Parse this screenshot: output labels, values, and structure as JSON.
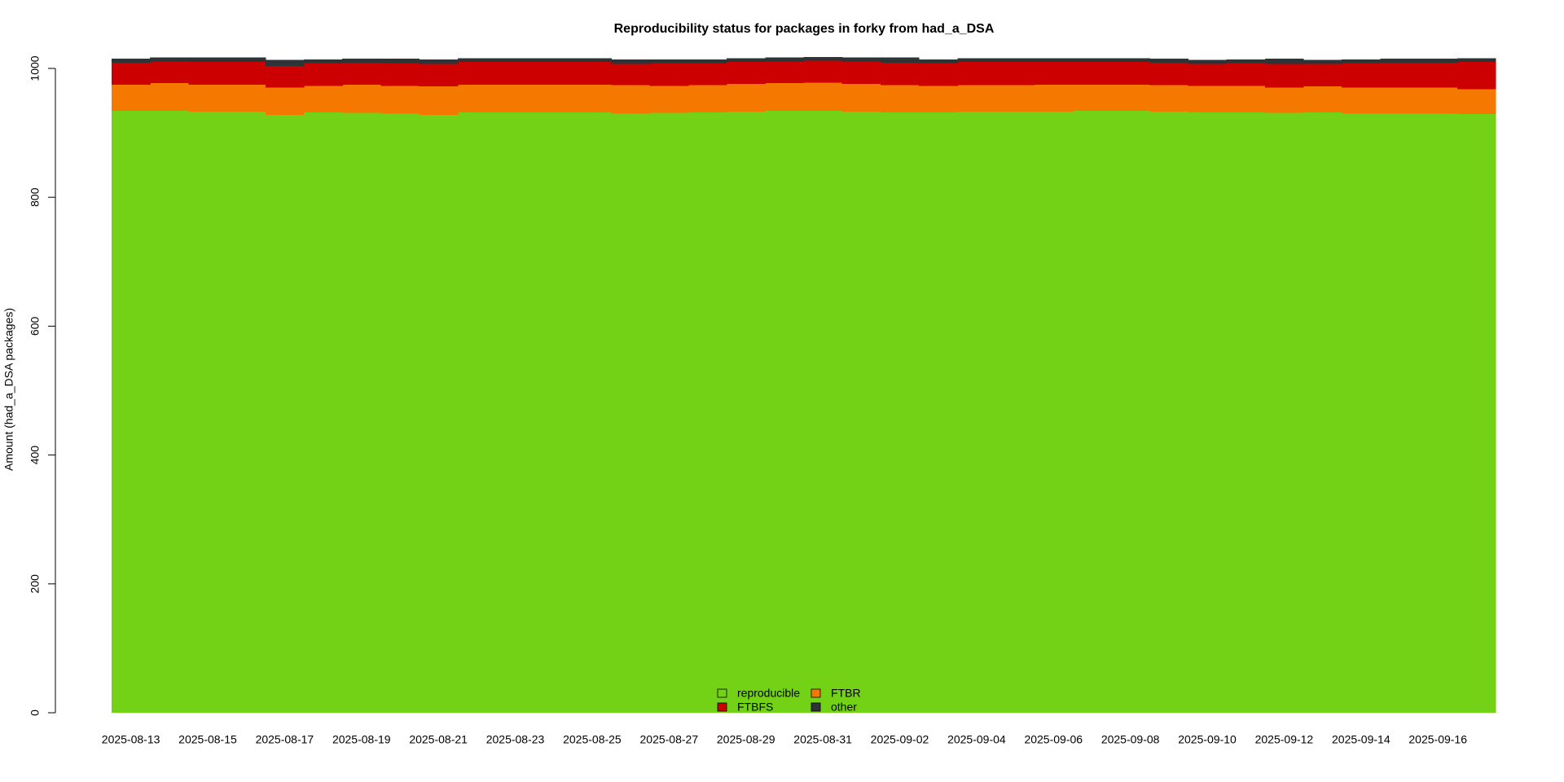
{
  "chart_data": {
    "type": "area",
    "stacked": true,
    "step": true,
    "title": "Reproducibility status for packages in forky from had_a_DSA",
    "y_label": "Amount (had_a_DSA packages)",
    "categories": [
      "2025-08-13",
      null,
      "2025-08-15",
      null,
      "2025-08-17",
      null,
      "2025-08-19",
      null,
      "2025-08-21",
      null,
      "2025-08-23",
      null,
      "2025-08-25",
      null,
      "2025-08-27",
      null,
      "2025-08-29",
      null,
      "2025-08-31",
      null,
      "2025-09-02",
      null,
      "2025-09-04",
      null,
      "2025-09-06",
      null,
      "2025-09-08",
      null,
      "2025-09-10",
      null,
      "2025-09-12",
      null,
      "2025-09-14",
      null,
      "2025-09-16",
      null
    ],
    "series": [
      {
        "name": "reproducible",
        "color": "#73d216",
        "values": [
          934,
          934,
          933,
          933,
          928,
          932,
          931,
          930,
          928,
          932,
          932,
          932,
          932,
          930,
          931,
          932,
          933,
          934,
          934,
          933,
          932,
          932,
          933,
          933,
          933,
          934,
          934,
          933,
          932,
          932,
          931,
          932,
          930,
          930,
          930,
          929
        ]
      },
      {
        "name": "FTBR",
        "color": "#f57900",
        "values": [
          41,
          43,
          42,
          42,
          42,
          41,
          44,
          43,
          44,
          43,
          43,
          43,
          43,
          44,
          42,
          42,
          43,
          43,
          44,
          43,
          42,
          41,
          41,
          41,
          42,
          41,
          41,
          41,
          41,
          41,
          39,
          40,
          40,
          40,
          40,
          39
        ]
      },
      {
        "name": "FTBFS",
        "color": "#cc0000",
        "values": [
          34,
          34,
          35,
          35,
          34,
          35,
          34,
          35,
          35,
          35,
          35,
          35,
          35,
          33,
          35,
          34,
          34,
          34,
          34,
          35,
          35,
          35,
          36,
          36,
          35,
          35,
          35,
          35,
          34,
          35,
          37,
          35,
          38,
          39,
          39,
          42
        ]
      },
      {
        "name": "other",
        "color": "#2e3436",
        "values": [
          6,
          6,
          7,
          7,
          9,
          6,
          6,
          7,
          7,
          6,
          6,
          6,
          6,
          7,
          6,
          6,
          6,
          6,
          6,
          6,
          8,
          6,
          6,
          6,
          6,
          6,
          6,
          6,
          6,
          6,
          8,
          6,
          6,
          6,
          6,
          6
        ]
      }
    ],
    "ylim": [
      0,
      1000
    ],
    "yticks": [
      0,
      200,
      400,
      600,
      800,
      1000
    ],
    "grid": false,
    "legend": "bottom"
  }
}
